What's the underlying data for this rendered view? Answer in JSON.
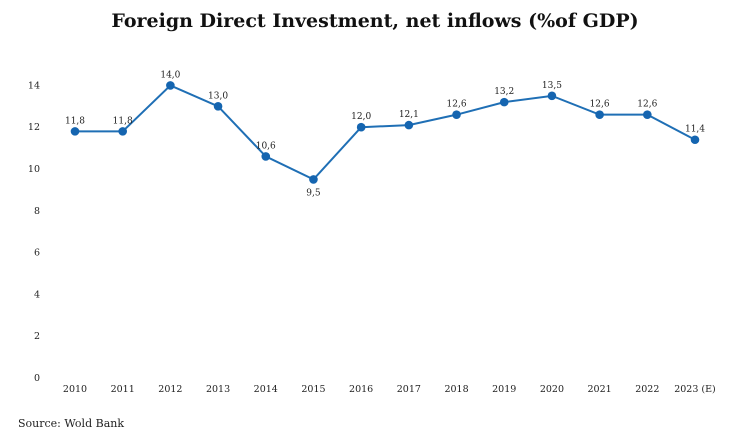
{
  "chart_data": {
    "type": "line",
    "title": "Foreign Direct Investment, net inflows (%of GDP)",
    "source": "Source: Wold Bank",
    "categories": [
      "2010",
      "2011",
      "2012",
      "2013",
      "2014",
      "2015",
      "2016",
      "2017",
      "2018",
      "2019",
      "2020",
      "2021",
      "2022",
      "2023 (E)"
    ],
    "series": [
      {
        "values": [
          11.8,
          11.8,
          14.0,
          13.0,
          10.6,
          9.5,
          12.0,
          12.1,
          12.6,
          13.2,
          13.5,
          12.6,
          12.6,
          11.4
        ],
        "labels": [
          "11,8",
          "11,8",
          "14,0",
          "13,0",
          "10,6",
          "9,5",
          "12,0",
          "12,1",
          "12,6",
          "13,2",
          "13,5",
          "12,6",
          "12,6",
          "11,4"
        ]
      }
    ],
    "label_positions": [
      "above",
      "above",
      "above",
      "above",
      "above",
      "below",
      "above",
      "above",
      "above",
      "above",
      "above",
      "above",
      "above",
      "above"
    ],
    "yticks": [
      0,
      2,
      4,
      6,
      8,
      10,
      12,
      14
    ],
    "ylim": [
      0,
      14.5
    ],
    "grid": false,
    "line_color": "#1f6fb5",
    "marker_color": "#1565b0"
  }
}
